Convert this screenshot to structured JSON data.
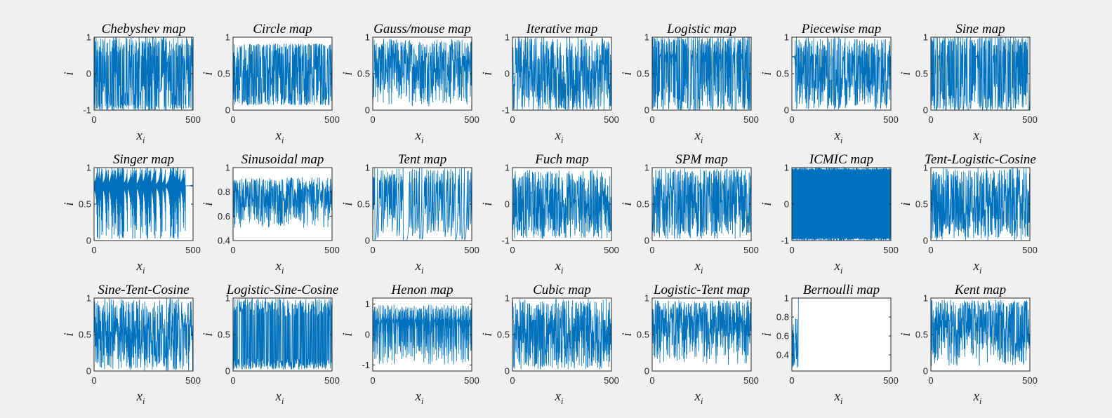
{
  "figure": {
    "background": "#f0f0f0",
    "line_color": "#0072bd",
    "axes_color": "#262626"
  },
  "chart_data": [
    {
      "type": "line",
      "title": "Chebyshev map",
      "xlabel": "x",
      "xlabel_sub": "i",
      "ylabel": "i",
      "xlim": [
        0,
        500
      ],
      "ylim": [
        -1,
        1
      ],
      "xticks": [
        "0",
        "500"
      ],
      "yticks": [
        "-1",
        "0",
        "1"
      ],
      "grid": false,
      "generator": "chebyshev"
    },
    {
      "type": "line",
      "title": "Circle map",
      "xlabel": "x",
      "xlabel_sub": "i",
      "ylabel": "i",
      "xlim": [
        0,
        500
      ],
      "ylim": [
        0,
        1
      ],
      "xticks": [
        "0",
        "500"
      ],
      "yticks": [
        "0",
        "0.5",
        "1"
      ],
      "grid": false,
      "generator": "circle"
    },
    {
      "type": "line",
      "title": "Gauss/mouse map",
      "xlabel": "x",
      "xlabel_sub": "i",
      "ylabel": "i",
      "xlim": [
        0,
        500
      ],
      "ylim": [
        0,
        1
      ],
      "xticks": [
        "0",
        "500"
      ],
      "yticks": [
        "0",
        "0.5",
        "1"
      ],
      "grid": false,
      "generator": "gauss"
    },
    {
      "type": "line",
      "title": "Iterative map",
      "xlabel": "x",
      "xlabel_sub": "i",
      "ylabel": "i",
      "xlim": [
        0,
        500
      ],
      "ylim": [
        -1,
        1
      ],
      "xticks": [
        "0",
        "500"
      ],
      "yticks": [
        "-1",
        "0",
        "1"
      ],
      "grid": false,
      "generator": "iterative"
    },
    {
      "type": "line",
      "title": "Logistic map",
      "xlabel": "x",
      "xlabel_sub": "i",
      "ylabel": "i",
      "xlim": [
        0,
        500
      ],
      "ylim": [
        0,
        1
      ],
      "xticks": [
        "0",
        "500"
      ],
      "yticks": [
        "0",
        "0.5",
        "1"
      ],
      "grid": false,
      "generator": "logistic"
    },
    {
      "type": "line",
      "title": "Piecewise map",
      "xlabel": "x",
      "xlabel_sub": "i",
      "ylabel": "i",
      "xlim": [
        0,
        500
      ],
      "ylim": [
        0,
        1
      ],
      "xticks": [
        "0",
        "500"
      ],
      "yticks": [
        "0",
        "0.5",
        "1"
      ],
      "grid": false,
      "generator": "piecewise"
    },
    {
      "type": "line",
      "title": "Sine map",
      "xlabel": "x",
      "xlabel_sub": "i",
      "ylabel": "i",
      "xlim": [
        0,
        500
      ],
      "ylim": [
        0,
        1
      ],
      "xticks": [
        "0",
        "500"
      ],
      "yticks": [
        "0",
        "0.5",
        "1"
      ],
      "grid": false,
      "generator": "sine"
    },
    {
      "type": "line",
      "title": "Singer map",
      "xlabel": "x",
      "xlabel_sub": "i",
      "ylabel": "i",
      "xlim": [
        0,
        500
      ],
      "ylim": [
        0,
        1
      ],
      "xticks": [
        "0",
        "500"
      ],
      "yticks": [
        "0",
        "0.5",
        "1"
      ],
      "grid": false,
      "generator": "singer"
    },
    {
      "type": "line",
      "title": "Sinusoidal map",
      "xlabel": "x",
      "xlabel_sub": "i",
      "ylabel": "i",
      "xlim": [
        0,
        500
      ],
      "ylim": [
        0.4,
        1
      ],
      "xticks": [
        "0",
        "500"
      ],
      "yticks": [
        "0.4",
        "0.6",
        "0.8",
        "1"
      ],
      "grid": false,
      "generator": "sinusoidal"
    },
    {
      "type": "line",
      "title": "Tent map",
      "xlabel": "x",
      "xlabel_sub": "i",
      "ylabel": "i",
      "xlim": [
        0,
        500
      ],
      "ylim": [
        0,
        1
      ],
      "xticks": [
        "0",
        "500"
      ],
      "yticks": [
        "0",
        "0.5",
        "1"
      ],
      "grid": false,
      "generator": "tent"
    },
    {
      "type": "line",
      "title": "Fuch map",
      "xlabel": "x",
      "xlabel_sub": "i",
      "ylabel": "i",
      "xlim": [
        0,
        500
      ],
      "ylim": [
        -1,
        1
      ],
      "xticks": [
        "0",
        "500"
      ],
      "yticks": [
        "-1",
        "0",
        "1"
      ],
      "grid": false,
      "generator": "fuch"
    },
    {
      "type": "line",
      "title": "SPM map",
      "xlabel": "x",
      "xlabel_sub": "i",
      "ylabel": "i",
      "xlim": [
        0,
        500
      ],
      "ylim": [
        0,
        1
      ],
      "xticks": [
        "0",
        "500"
      ],
      "yticks": [
        "0",
        "0.5",
        "1"
      ],
      "grid": false,
      "generator": "spm"
    },
    {
      "type": "line",
      "title": "ICMIC map",
      "xlabel": "x",
      "xlabel_sub": "i",
      "ylabel": "i",
      "xlim": [
        0,
        500
      ],
      "ylim": [
        -1,
        1
      ],
      "xticks": [
        "0",
        "500"
      ],
      "yticks": [
        "-1",
        "0",
        "1"
      ],
      "grid": false,
      "generator": "icmic"
    },
    {
      "type": "line",
      "title": "Tent-Logistic-Cosine",
      "xlabel": "x",
      "xlabel_sub": "i",
      "ylabel": "i",
      "xlim": [
        0,
        500
      ],
      "ylim": [
        0,
        1
      ],
      "xticks": [
        "0",
        "500"
      ],
      "yticks": [
        "0",
        "0.5",
        "1"
      ],
      "grid": false,
      "generator": "tlc"
    },
    {
      "type": "line",
      "title": "Sine-Tent-Cosine",
      "xlabel": "x",
      "xlabel_sub": "i",
      "ylabel": "i",
      "xlim": [
        0,
        500
      ],
      "ylim": [
        0,
        1
      ],
      "xticks": [
        "0",
        "500"
      ],
      "yticks": [
        "0",
        "0.5",
        "1"
      ],
      "grid": false,
      "generator": "stc"
    },
    {
      "type": "line",
      "title": "Logistic-Sine-Cosine",
      "xlabel": "x",
      "xlabel_sub": "i",
      "ylabel": "i",
      "xlim": [
        0,
        500
      ],
      "ylim": [
        0,
        1
      ],
      "xticks": [
        "0",
        "500"
      ],
      "yticks": [
        "0",
        "0.5",
        "1"
      ],
      "grid": false,
      "generator": "lsc"
    },
    {
      "type": "line",
      "title": "Henon map",
      "xlabel": "x",
      "xlabel_sub": "i",
      "ylabel": "i",
      "xlim": [
        0,
        500
      ],
      "ylim": [
        -1.2,
        1.2
      ],
      "xticks": [
        "0",
        "500"
      ],
      "yticks": [
        "-1",
        "0",
        "1"
      ],
      "grid": false,
      "generator": "henon"
    },
    {
      "type": "line",
      "title": "Cubic map",
      "xlabel": "x",
      "xlabel_sub": "i",
      "ylabel": "i",
      "xlim": [
        0,
        500
      ],
      "ylim": [
        0,
        1
      ],
      "xticks": [
        "0",
        "500"
      ],
      "yticks": [
        "0",
        "0.5",
        "1"
      ],
      "grid": false,
      "generator": "cubic"
    },
    {
      "type": "line",
      "title": "Logistic-Tent map",
      "xlabel": "x",
      "xlabel_sub": "i",
      "ylabel": "i",
      "xlim": [
        0,
        500
      ],
      "ylim": [
        0,
        1
      ],
      "xticks": [
        "0",
        "500"
      ],
      "yticks": [
        "0",
        "0.5",
        "1"
      ],
      "grid": false,
      "generator": "lt"
    },
    {
      "type": "line",
      "title": "Bernoulli map",
      "xlabel": "x",
      "xlabel_sub": "i",
      "ylabel": "i",
      "xlim": [
        0,
        500
      ],
      "ylim": [
        0.23,
        1
      ],
      "xticks": [
        "0",
        "500"
      ],
      "yticks": [
        "0.4",
        "0.6",
        "0.8",
        "1"
      ],
      "grid": false,
      "generator": "bernoulli"
    },
    {
      "type": "line",
      "title": "Kent map",
      "xlabel": "x",
      "xlabel_sub": "i",
      "ylabel": "i",
      "xlim": [
        0,
        500
      ],
      "ylim": [
        0,
        1
      ],
      "xticks": [
        "0",
        "500"
      ],
      "yticks": [
        "0",
        "0.5",
        "1"
      ],
      "grid": false,
      "generator": "kent"
    }
  ]
}
